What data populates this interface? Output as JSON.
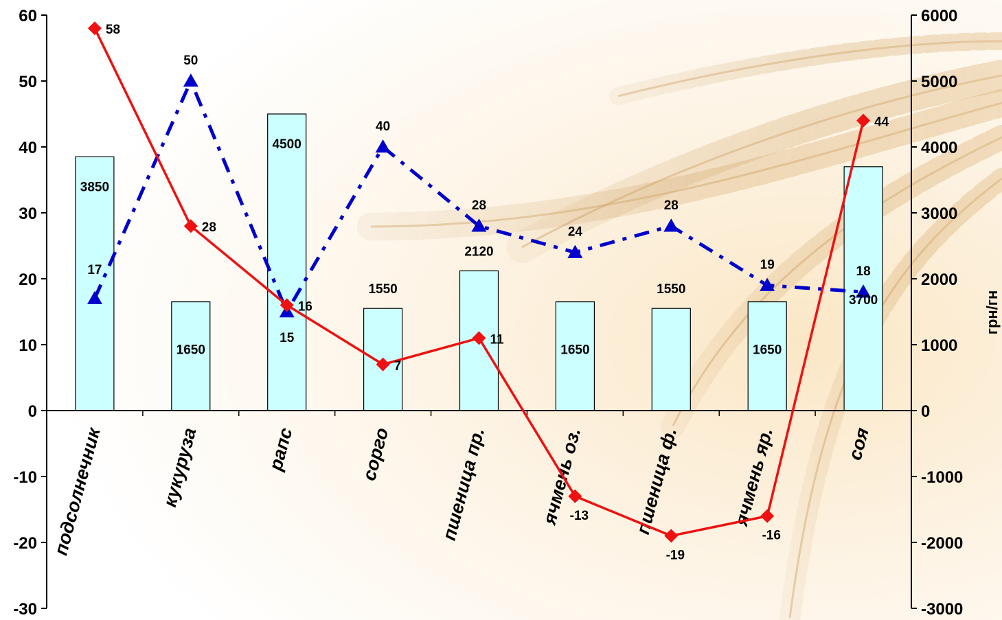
{
  "chart_data": {
    "type": "bar",
    "title": "",
    "categories": [
      "подсолнечник",
      "кукуруза",
      "рапс",
      "сорго",
      "пшеница пр.",
      "ячмень оз.",
      "пшеница ф.",
      "ячмень яр.",
      "соя"
    ],
    "bar_series": {
      "axis": "right",
      "values": [
        3850,
        1650,
        4500,
        1550,
        2120,
        1650,
        1550,
        1650,
        3700
      ],
      "color": "#ccffff"
    },
    "series": [
      {
        "type": "line",
        "axis": "left",
        "marker": "triangle",
        "style": "dash-dot",
        "values": [
          17,
          50,
          15,
          40,
          28,
          24,
          28,
          19,
          18
        ],
        "color": "#0000cc"
      },
      {
        "type": "line",
        "axis": "left",
        "marker": "diamond",
        "style": "solid",
        "values": [
          58,
          28,
          16,
          7,
          11,
          -13,
          -19,
          -16,
          44
        ],
        "color": "#ee1111"
      }
    ],
    "left_axis": {
      "min": -30,
      "max": 60,
      "step": 10,
      "label": ""
    },
    "right_axis": {
      "min": -3000,
      "max": 6000,
      "step": 1000,
      "label": "грн/гн"
    },
    "grid": false,
    "legend": "none",
    "background": "wheat photo"
  }
}
